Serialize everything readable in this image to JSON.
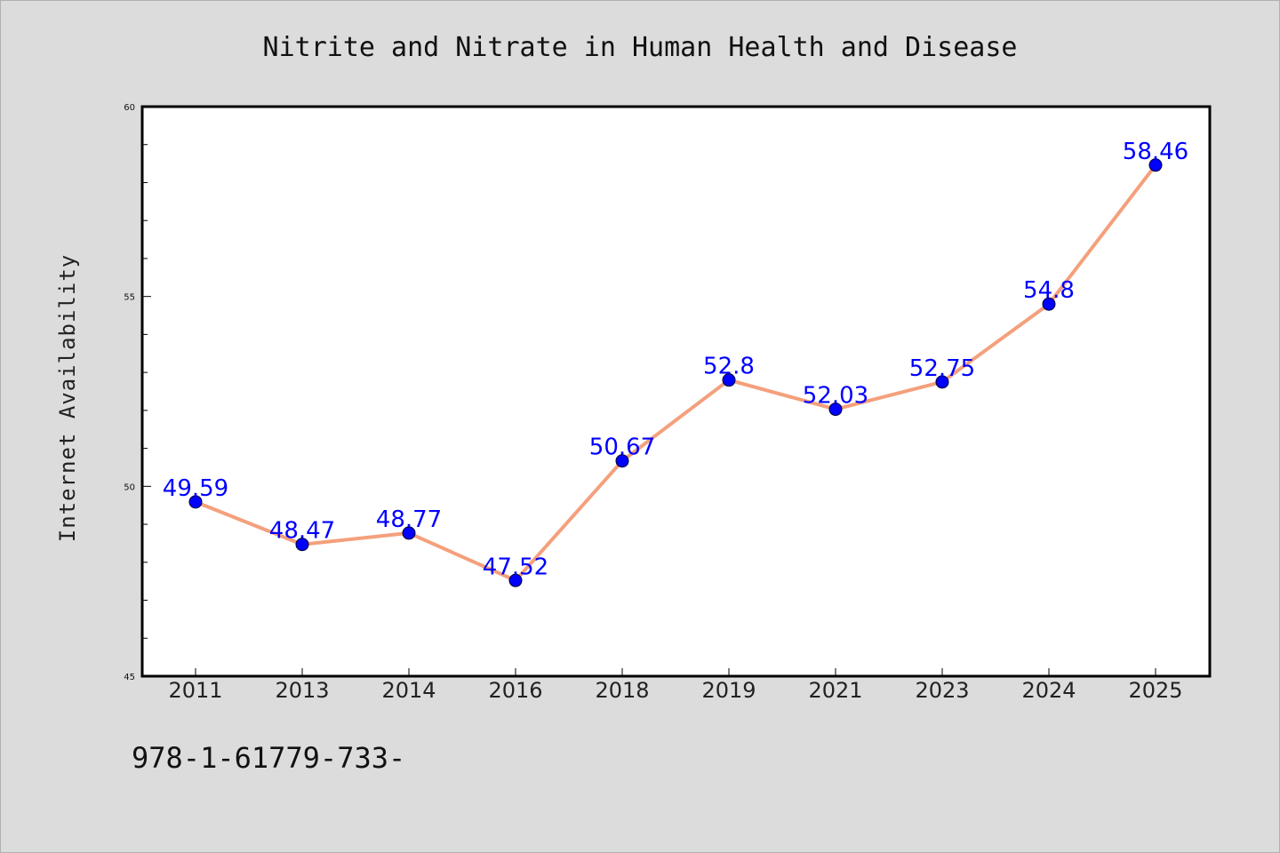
{
  "chart_data": {
    "type": "line",
    "title": "Nitrite and Nitrate in Human Health and Disease",
    "xlabel": "",
    "ylabel": "Internet Availability",
    "categories": [
      "2011",
      "2013",
      "2014",
      "2016",
      "2018",
      "2019",
      "2021",
      "2023",
      "2024",
      "2025"
    ],
    "series": [
      {
        "values": [
          49.59,
          48.47,
          48.77,
          47.52,
          50.67,
          52.8,
          52.03,
          52.75,
          54.8,
          58.46
        ],
        "data_labels": [
          "49.59",
          "48.47",
          "48.77",
          "47.52",
          "50.67",
          "52.8",
          "52.03",
          "52.75",
          "54.8",
          "58.46"
        ]
      }
    ],
    "ylim": [
      45,
      60
    ],
    "yticks": [
      "45",
      "50",
      "55",
      "60"
    ],
    "grid": false,
    "colors": {
      "line": "#f4a07c",
      "marker": "#0000ff",
      "data_label": "#0000ff",
      "background": "#dcdcdc",
      "plot_background": "#ffffff"
    }
  },
  "footnote": "978-1-61779-733-"
}
